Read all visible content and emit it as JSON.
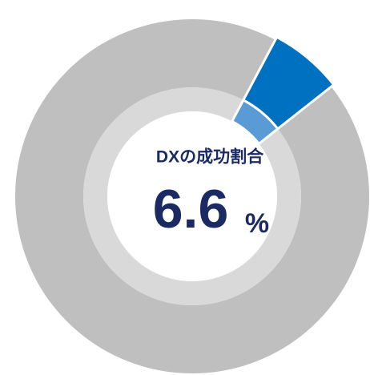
{
  "chart_data": {
    "type": "donut",
    "title": "DXの成功割合",
    "values": [
      6.6
    ],
    "unit": "%",
    "color": "#0070c0",
    "inner_color": "#5b9bd5",
    "rest_color": "#bfbfbf",
    "rest_inner_color": "#d9d9d9"
  }
}
